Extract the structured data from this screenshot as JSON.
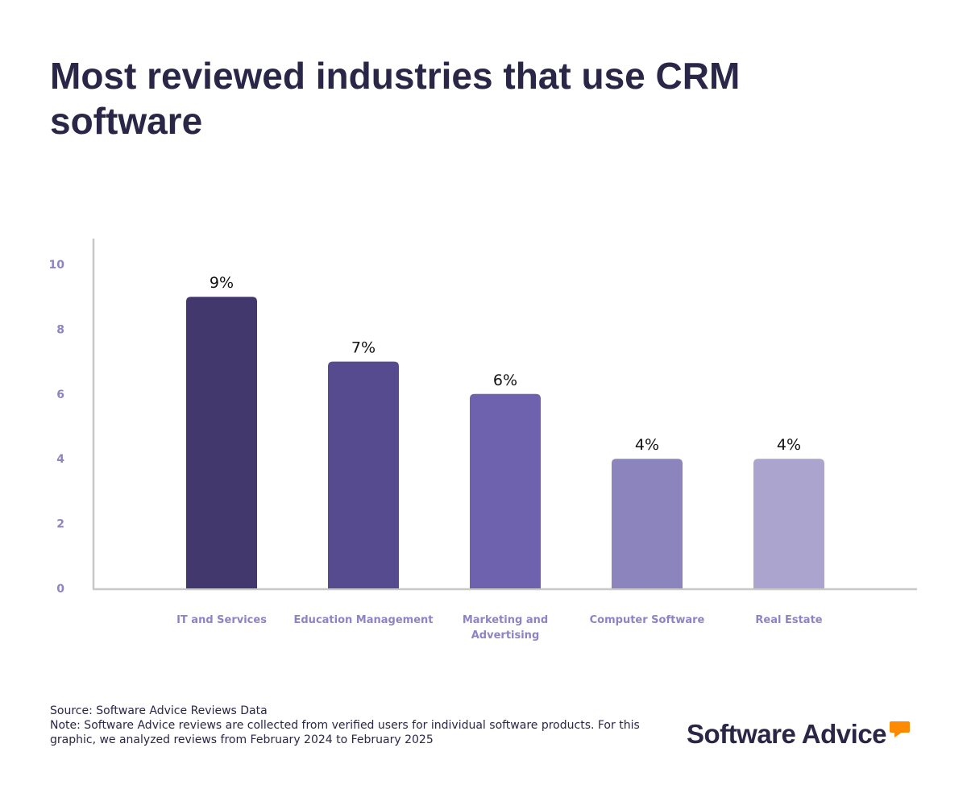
{
  "chart_data": {
    "type": "bar",
    "title": "Most reviewed industries that use CRM software",
    "categories": [
      "IT and Services",
      "Education Management",
      "Marketing and Advertising",
      "Computer Software",
      "Real Estate"
    ],
    "values": [
      9,
      7,
      6,
      4,
      4
    ],
    "data_labels": [
      "9%",
      "7%",
      "6%",
      "4%",
      "4%"
    ],
    "colors": [
      "#43386e",
      "#574b8f",
      "#6e61ad",
      "#8c84bd",
      "#aaa4cf"
    ],
    "yticks": [
      0,
      2,
      4,
      6,
      8,
      10
    ],
    "ylim": [
      0,
      10
    ],
    "xlabel": "",
    "ylabel": "",
    "grid": false
  },
  "footer": {
    "source": "Source: Software Advice Reviews Data",
    "note": "Note: Software Advice reviews are collected from verified users for individual software products. For this graphic, we analyzed reviews from February 2024 to February 2025"
  },
  "logo": {
    "text": "Software Advice",
    "accent": "#ff8a00"
  }
}
